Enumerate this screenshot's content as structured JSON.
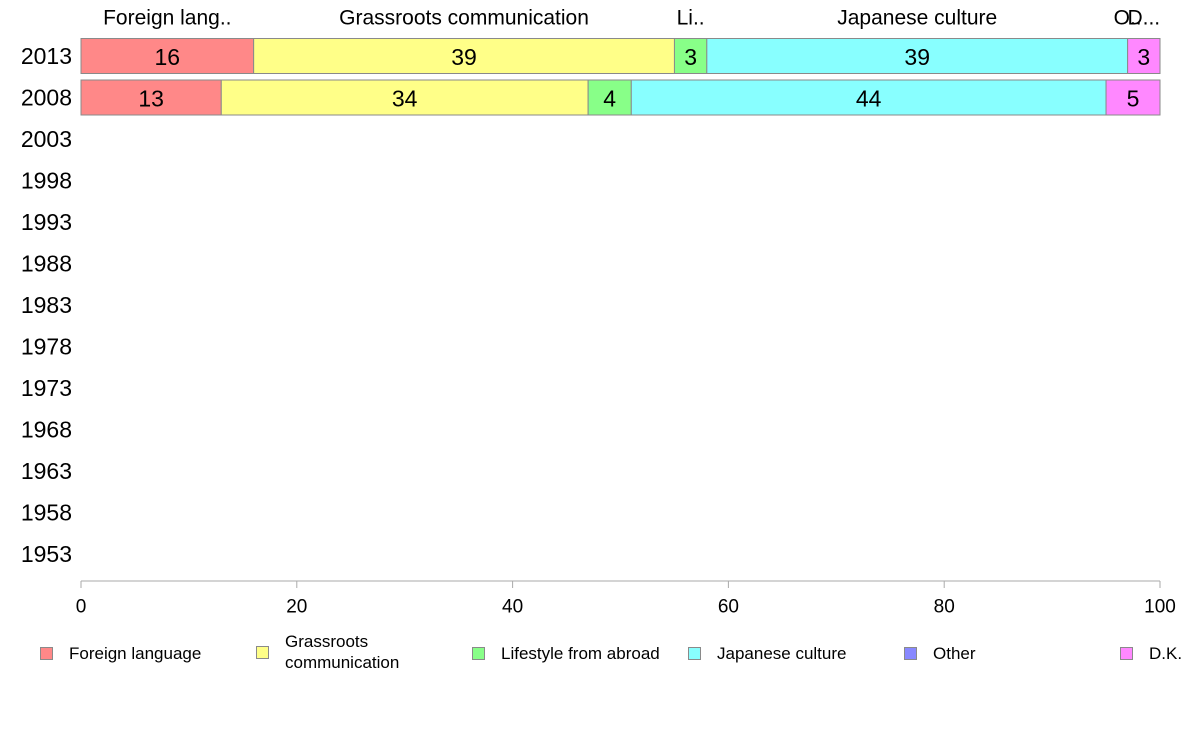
{
  "chart_data": {
    "type": "bar",
    "orientation": "horizontal",
    "stacked": true,
    "title": "",
    "xlabel": "",
    "ylabel": "",
    "xlim": [
      0,
      100
    ],
    "xticks": [
      "0",
      "20",
      "40",
      "60",
      "80",
      "100"
    ],
    "categories": [
      "2013",
      "2008",
      "2003",
      "1998",
      "1993",
      "1988",
      "1983",
      "1978",
      "1973",
      "1968",
      "1963",
      "1958",
      "1953"
    ],
    "series": [
      {
        "name": "Foreign language",
        "header": "Foreign lang..",
        "color": "#ff8888",
        "values": [
          16,
          13,
          null,
          null,
          null,
          null,
          null,
          null,
          null,
          null,
          null,
          null,
          null
        ]
      },
      {
        "name": "Grassroots communication",
        "header": "Grassroots communication",
        "color": "#ffff88",
        "values": [
          39,
          34,
          null,
          null,
          null,
          null,
          null,
          null,
          null,
          null,
          null,
          null,
          null
        ]
      },
      {
        "name": "Lifestyle from abroad",
        "header": "Li..",
        "color": "#88ff88",
        "values": [
          3,
          4,
          null,
          null,
          null,
          null,
          null,
          null,
          null,
          null,
          null,
          null,
          null
        ]
      },
      {
        "name": "Japanese culture",
        "header": "Japanese culture",
        "color": "#88ffff",
        "values": [
          39,
          44,
          null,
          null,
          null,
          null,
          null,
          null,
          null,
          null,
          null,
          null,
          null
        ]
      },
      {
        "name": "Other",
        "header": "O..",
        "color": "#8888ff",
        "values": [
          0,
          0,
          null,
          null,
          null,
          null,
          null,
          null,
          null,
          null,
          null,
          null,
          null
        ]
      },
      {
        "name": "D.K.",
        "header": "D...",
        "color": "#ff88ff",
        "values": [
          3,
          5,
          null,
          null,
          null,
          null,
          null,
          null,
          null,
          null,
          null,
          null,
          null
        ]
      }
    ],
    "legend": {
      "position": "bottom",
      "items": [
        {
          "label": "Foreign language",
          "color": "#ff8888"
        },
        {
          "label": "Grassroots\ncommunication",
          "color": "#ffff88"
        },
        {
          "label": "Lifestyle from abroad",
          "color": "#88ff88"
        },
        {
          "label": "Japanese culture",
          "color": "#88ffff"
        },
        {
          "label": "Other",
          "color": "#8888ff"
        },
        {
          "label": "D.K.",
          "color": "#ff88ff"
        }
      ]
    },
    "grid": false
  }
}
